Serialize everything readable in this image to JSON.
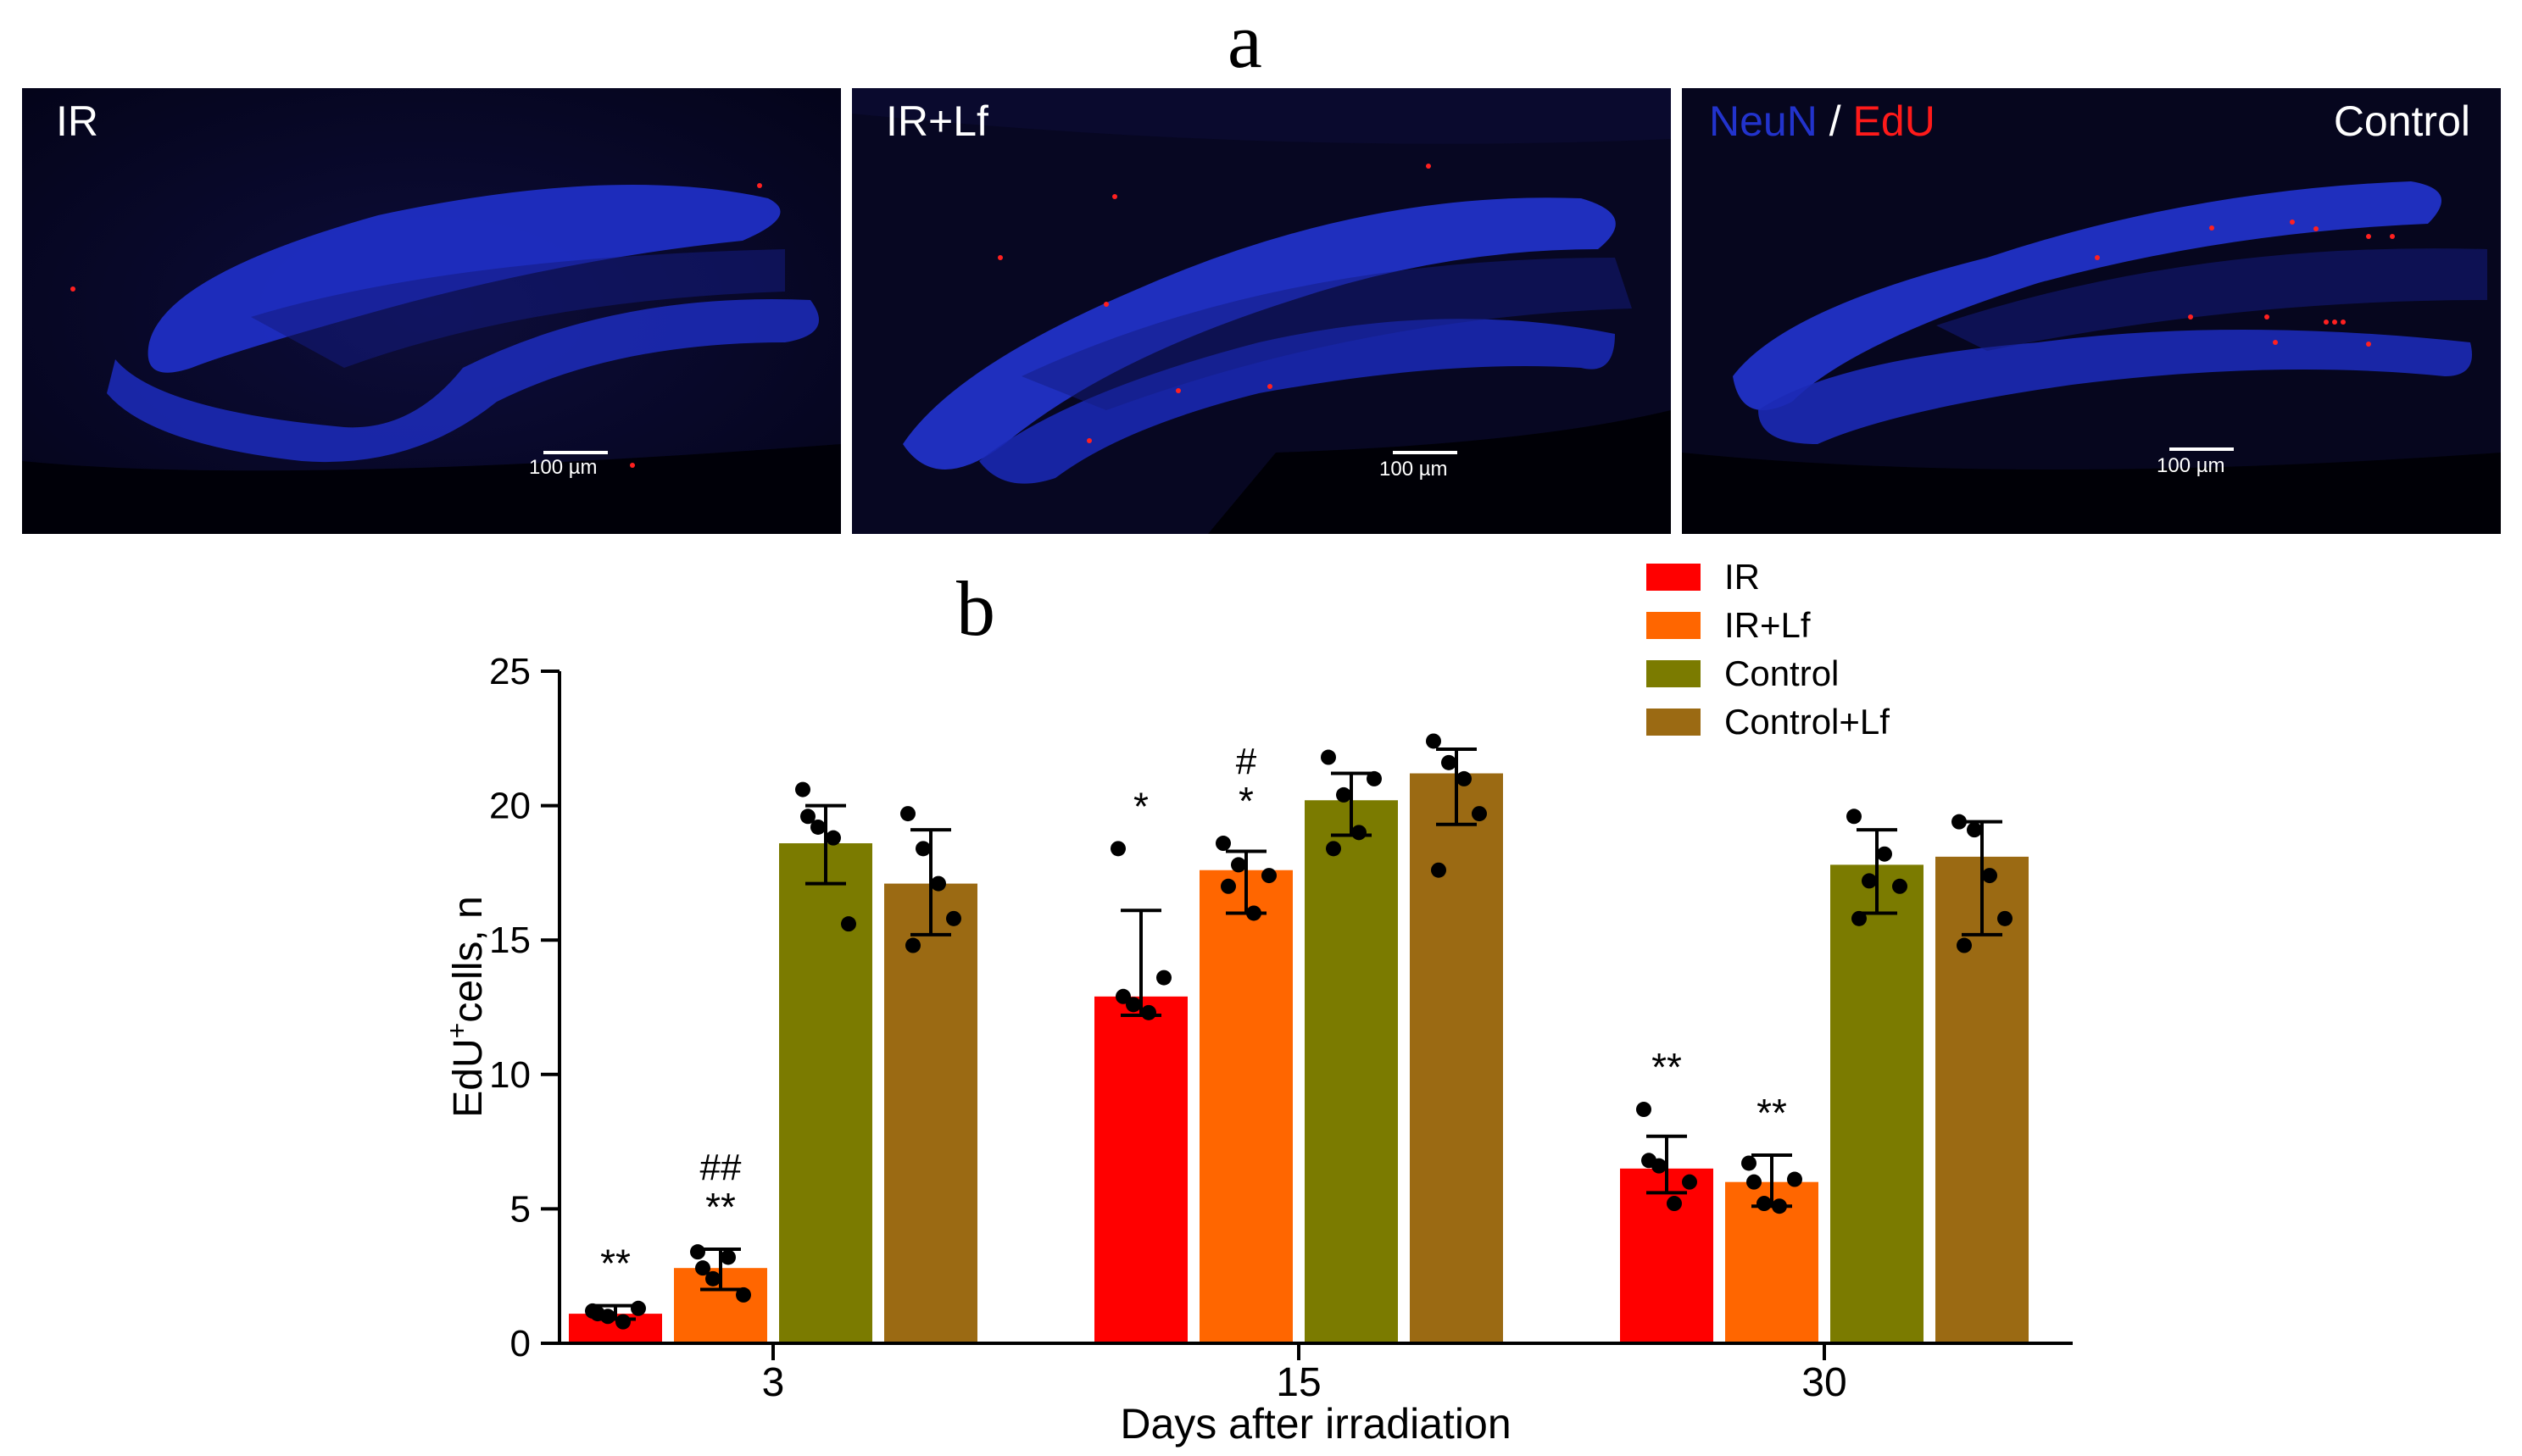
{
  "panel_a": {
    "letter": "a",
    "images": [
      {
        "label": "IR",
        "scale": "100 µm"
      },
      {
        "label": "IR+Lf",
        "scale": "100 µm"
      },
      {
        "label": "Control",
        "scale": "100 µm",
        "stain_neun": "NeuN",
        "stain_sep": " / ",
        "stain_edu": "EdU"
      }
    ],
    "colors": {
      "neun": "#2233cc",
      "edu": "#ff1a1a",
      "background": "#050520"
    }
  },
  "panel_b": {
    "letter": "b"
  },
  "chart_data": {
    "type": "bar",
    "categories": [
      "3",
      "15",
      "30"
    ],
    "xlabel": "Days after irradiation",
    "ylabel_main": "EdU",
    "ylabel_sup": "+",
    "ylabel_rest": "cells, n",
    "ylim": [
      0,
      25
    ],
    "yticks": [
      "0",
      "5",
      "10",
      "15",
      "20",
      "25"
    ],
    "legend_position": "top-right",
    "series": [
      {
        "name": "IR",
        "color": "#ff0000",
        "values": [
          1.1,
          12.9,
          6.5
        ],
        "err_low": [
          0.9,
          12.2,
          5.6
        ],
        "err_high": [
          1.4,
          16.1,
          7.7
        ],
        "points": [
          [
            1.2,
            1.0,
            0.8,
            1.3,
            1.1
          ],
          [
            18.4,
            12.6,
            12.3,
            13.6,
            12.9
          ],
          [
            8.7,
            6.6,
            5.2,
            6.0,
            6.8
          ]
        ],
        "annotations": [
          "**",
          "*",
          "**"
        ]
      },
      {
        "name": "IR+Lf",
        "color": "#ff6600",
        "values": [
          2.8,
          17.6,
          6.0
        ],
        "err_low": [
          2.0,
          16.0,
          5.1
        ],
        "err_high": [
          3.5,
          18.3,
          7.0
        ],
        "points": [
          [
            3.4,
            2.4,
            3.2,
            1.8,
            2.8
          ],
          [
            18.6,
            17.8,
            16.0,
            17.4,
            17.0
          ],
          [
            6.7,
            5.2,
            5.1,
            6.1,
            6.0
          ]
        ],
        "annotations": [
          "**",
          "*",
          "**"
        ],
        "annotations2": [
          "##",
          "#",
          ""
        ]
      },
      {
        "name": "Control",
        "color": "#7b7b00",
        "values": [
          18.6,
          20.2,
          17.8
        ],
        "err_low": [
          17.1,
          18.9,
          16.0
        ],
        "err_high": [
          20.0,
          21.2,
          19.1
        ],
        "points": [
          [
            20.6,
            19.2,
            18.8,
            15.6,
            19.6
          ],
          [
            21.8,
            20.4,
            19.0,
            21.0,
            18.4
          ],
          [
            19.6,
            17.2,
            18.2,
            17.0,
            15.8
          ]
        ],
        "annotations": [
          "",
          "",
          ""
        ]
      },
      {
        "name": "Control+Lf",
        "color": "#9b6a13",
        "values": [
          17.1,
          21.2,
          18.1
        ],
        "err_low": [
          15.2,
          19.3,
          15.2
        ],
        "err_high": [
          19.1,
          22.1,
          19.4
        ],
        "points": [
          [
            19.7,
            18.4,
            17.1,
            15.8,
            14.8
          ],
          [
            22.4,
            21.6,
            21.0,
            19.7,
            17.6
          ],
          [
            19.4,
            19.1,
            17.4,
            15.8,
            14.8
          ]
        ],
        "annotations": [
          "",
          "",
          ""
        ]
      }
    ]
  }
}
